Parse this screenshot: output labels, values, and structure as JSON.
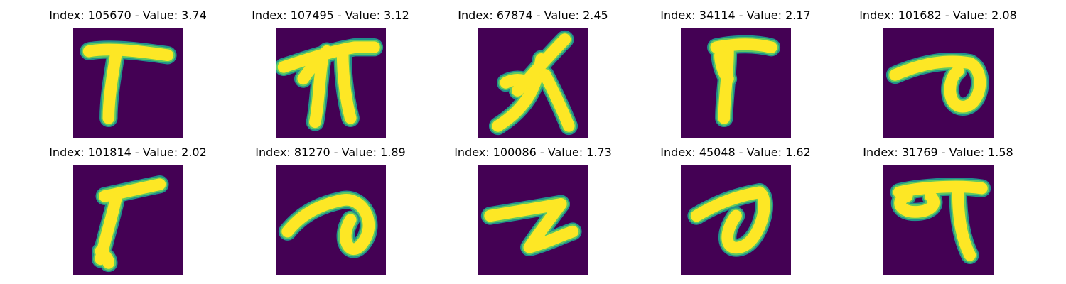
{
  "colors": {
    "background": "#440154",
    "stroke_edge": "#21908c",
    "stroke_mid": "#5ec962",
    "stroke_core": "#fde725"
  },
  "panels": [
    {
      "index": "105670",
      "value": "3.74",
      "title": "Index: 105670 - Value: 3.74",
      "glyph": "t-bar-thick"
    },
    {
      "index": "107495",
      "value": "3.12",
      "title": "Index: 107495 - Value: 3.12",
      "glyph": "double-branch"
    },
    {
      "index": "67874",
      "value": "2.45",
      "title": "Index: 67874 - Value: 2.45",
      "glyph": "lambda-like"
    },
    {
      "index": "34114",
      "value": "2.17",
      "title": "Index: 34114 - Value: 2.17",
      "glyph": "t-bar-short"
    },
    {
      "index": "101682",
      "value": "2.08",
      "title": "Index: 101682 - Value: 2.08",
      "glyph": "loop-hook"
    },
    {
      "index": "101814",
      "value": "2.02",
      "title": "Index: 101814 - Value: 2.02",
      "glyph": "slanted-t"
    },
    {
      "index": "81270",
      "value": "1.89",
      "title": "Index: 81270 - Value: 1.89",
      "glyph": "curl-loop"
    },
    {
      "index": "100086",
      "value": "1.73",
      "title": "Index: 100086 - Value: 1.73",
      "glyph": "z-zigzag"
    },
    {
      "index": "45048",
      "value": "1.62",
      "title": "Index: 45048 - Value: 1.62",
      "glyph": "oval-loop"
    },
    {
      "index": "31769",
      "value": "1.58",
      "title": "Index: 31769 - Value: 1.58",
      "glyph": "ring-t"
    }
  ]
}
